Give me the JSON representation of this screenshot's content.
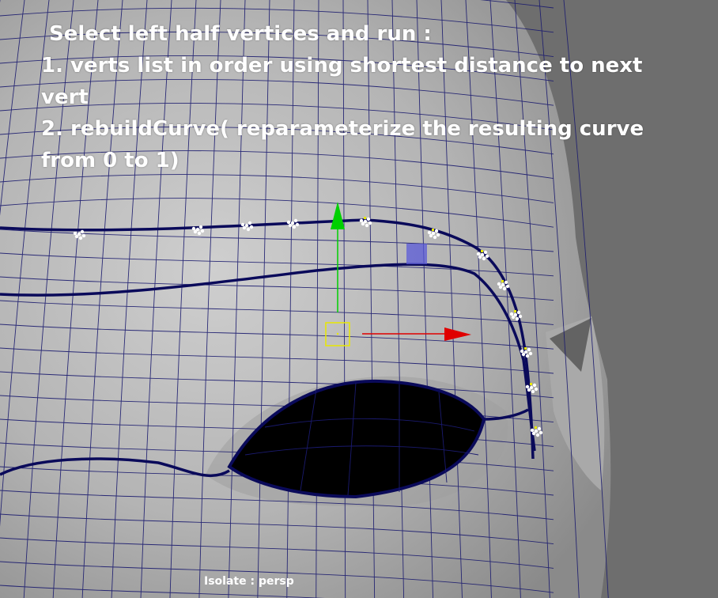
{
  "instructions": {
    "line1": "Select left half vertices and run :",
    "line2": "1. verts list in order using shortest distance to next",
    "line3": "vert",
    "line4": "2. rebuildCurve( reparameterize the resulting curve",
    "line5": "from 0 to 1)"
  },
  "viewport": {
    "status_label": "Isolate : persp"
  },
  "colors": {
    "background": "#6e6e6e",
    "mesh_fill": "#b9b9b9",
    "wireframe": "#1a1a6e",
    "curve": "#0a0a5a",
    "eye_socket": "#000000",
    "manipulator_y": "#00d000",
    "manipulator_x": "#e00000",
    "manipulator_center": "#e8e800",
    "selection_box": "#5a5ad8"
  },
  "icons": {
    "selected_vertex": "vertex-point-icon",
    "move_y_arrow": "move-y-arrow-icon",
    "move_x_arrow": "move-x-arrow-icon",
    "manipulator_center": "manipulator-center-icon"
  }
}
